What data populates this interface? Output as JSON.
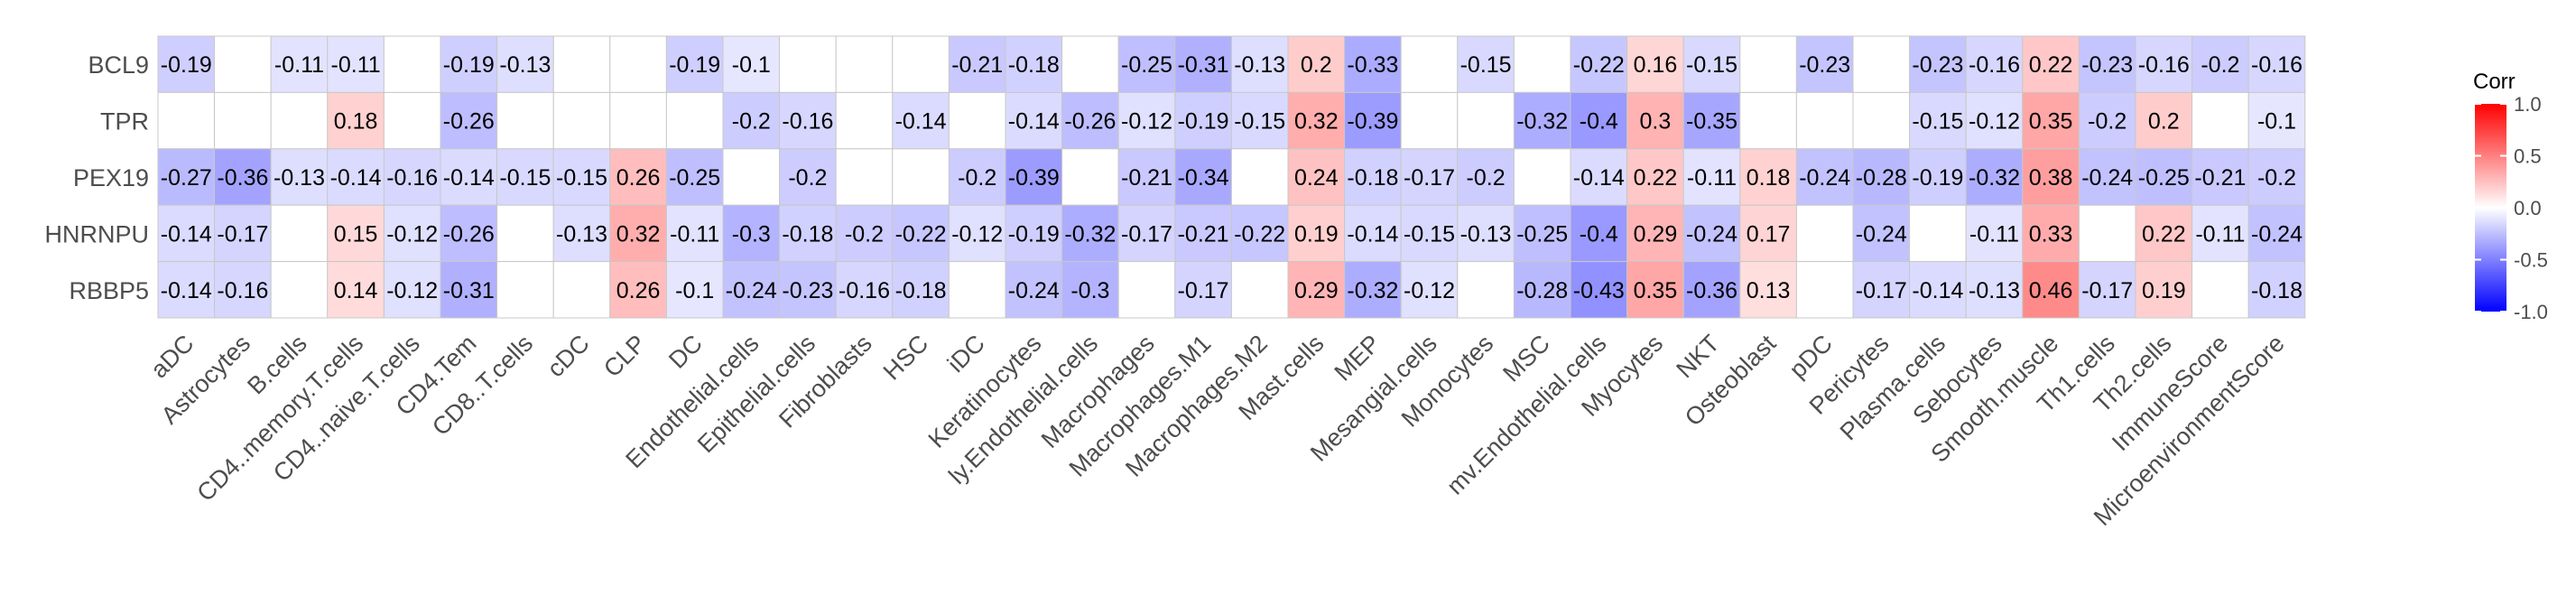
{
  "chart_data": {
    "type": "heatmap",
    "title": "",
    "xlabel": "",
    "ylabel": "",
    "rows": [
      "BCL9",
      "TPR",
      "PEX19",
      "HNRNPU",
      "RBBP5"
    ],
    "columns": [
      "aDC",
      "Astrocytes",
      "B.cells",
      "CD4..memory.T.cells",
      "CD4..naive.T.cells",
      "CD4.Tem",
      "CD8..T.cells",
      "cDC",
      "CLP",
      "DC",
      "Endothelial.cells",
      "Epithelial.cells",
      "Fibroblasts",
      "HSC",
      "iDC",
      "Keratinocytes",
      "ly.Endothelial.cells",
      "Macrophages",
      "Macrophages.M1",
      "Macrophages.M2",
      "Mast.cells",
      "MEP",
      "Mesangial.cells",
      "Monocytes",
      "MSC",
      "mv.Endothelial.cells",
      "Myocytes",
      "NKT",
      "Osteoblast",
      "pDC",
      "Pericytes",
      "Plasma.cells",
      "Sebocytes",
      "Smooth.muscle",
      "Th1.cells",
      "Th2.cells",
      "ImmuneScore",
      "MicroenvironmentScore"
    ],
    "values": [
      [
        -0.19,
        null,
        -0.11,
        -0.11,
        null,
        -0.19,
        -0.13,
        null,
        null,
        -0.19,
        -0.1,
        null,
        null,
        null,
        -0.21,
        -0.18,
        null,
        -0.25,
        -0.31,
        -0.13,
        0.2,
        -0.33,
        null,
        -0.15,
        null,
        -0.22,
        0.16,
        -0.15,
        null,
        -0.23,
        null,
        -0.23,
        -0.16,
        0.22,
        -0.23,
        -0.16,
        -0.2,
        -0.16
      ],
      [
        null,
        null,
        null,
        0.18,
        null,
        -0.26,
        null,
        null,
        null,
        null,
        -0.2,
        -0.16,
        null,
        -0.14,
        null,
        -0.14,
        -0.26,
        -0.12,
        -0.19,
        -0.15,
        0.32,
        -0.39,
        null,
        null,
        -0.32,
        -0.4,
        0.3,
        -0.35,
        null,
        null,
        null,
        -0.15,
        -0.12,
        0.35,
        -0.2,
        0.2,
        null,
        -0.1
      ],
      [
        -0.27,
        -0.36,
        -0.13,
        -0.14,
        -0.16,
        -0.14,
        -0.15,
        -0.15,
        0.26,
        -0.25,
        null,
        -0.2,
        null,
        null,
        -0.2,
        -0.39,
        null,
        -0.21,
        -0.34,
        null,
        0.24,
        -0.18,
        -0.17,
        -0.2,
        null,
        -0.14,
        0.22,
        -0.11,
        0.18,
        -0.24,
        -0.28,
        -0.19,
        -0.32,
        0.38,
        -0.24,
        -0.25,
        -0.21,
        -0.2
      ],
      [
        -0.14,
        -0.17,
        null,
        0.15,
        -0.12,
        -0.26,
        null,
        -0.13,
        0.32,
        -0.11,
        -0.3,
        -0.18,
        -0.2,
        -0.22,
        -0.12,
        -0.19,
        -0.32,
        -0.17,
        -0.21,
        -0.22,
        0.19,
        -0.14,
        -0.15,
        -0.13,
        -0.25,
        -0.4,
        0.29,
        -0.24,
        0.17,
        null,
        -0.24,
        null,
        -0.11,
        0.33,
        null,
        0.22,
        -0.11,
        -0.24
      ],
      [
        -0.14,
        -0.16,
        null,
        0.14,
        -0.12,
        -0.31,
        null,
        null,
        0.26,
        -0.1,
        -0.24,
        -0.23,
        -0.16,
        -0.18,
        null,
        -0.24,
        -0.3,
        null,
        -0.17,
        null,
        0.29,
        -0.32,
        -0.12,
        null,
        -0.28,
        -0.43,
        0.35,
        -0.36,
        0.13,
        null,
        -0.17,
        -0.14,
        -0.13,
        0.46,
        -0.17,
        0.19,
        null,
        -0.18
      ]
    ],
    "color_scale": {
      "low": "#0000FF",
      "mid": "#FFFFFF",
      "high": "#FF0000",
      "domain": [
        -1,
        1
      ]
    },
    "legend": {
      "title": "Corr",
      "ticks": [
        "1.0",
        "0.5",
        "0.0",
        "-0.5",
        "-1.0"
      ],
      "position": "right"
    }
  }
}
